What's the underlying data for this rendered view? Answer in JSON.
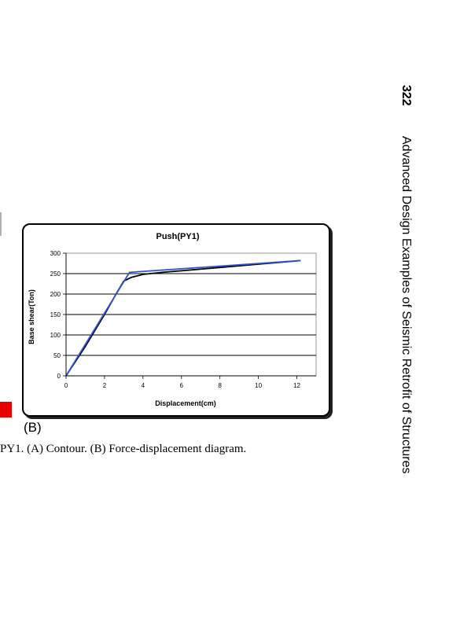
{
  "page": {
    "page_number": "322",
    "running_title": "Advanced Design Examples of Seismic Retrofit of Structures",
    "panel_label": "(B)",
    "caption": "PY1. (A) Contour. (B) Force-displacement diagram."
  },
  "chart_data": {
    "type": "line",
    "title": "Push(PY1)",
    "xlabel": "Displacement(cm)",
    "ylabel": "Base shear(Ton)",
    "xlim": [
      0,
      13
    ],
    "ylim": [
      0,
      300
    ],
    "x_ticks": [
      0,
      2,
      4,
      6,
      8,
      10,
      12
    ],
    "y_ticks": [
      0,
      50,
      100,
      150,
      200,
      250,
      300
    ],
    "grid": "horizontal",
    "legend": "none",
    "series": [
      {
        "color": "#000000",
        "points": [
          [
            0,
            0
          ],
          [
            1,
            72
          ],
          [
            2,
            150
          ],
          [
            2.6,
            200
          ],
          [
            3,
            232
          ],
          [
            3.4,
            241
          ],
          [
            4,
            248
          ],
          [
            5,
            253
          ],
          [
            6,
            257
          ],
          [
            8,
            265
          ],
          [
            10,
            273
          ],
          [
            12.2,
            282
          ]
        ]
      },
      {
        "color": "#3355cc",
        "points": [
          [
            0,
            0
          ],
          [
            3.3,
            253
          ],
          [
            12.2,
            282
          ]
        ]
      }
    ]
  }
}
